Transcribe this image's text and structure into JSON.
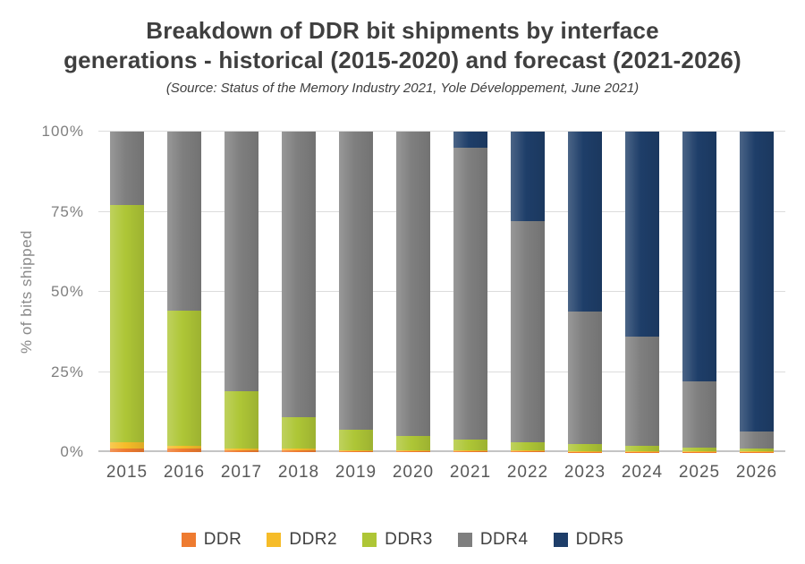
{
  "header": {
    "title_line1": "Breakdown of DDR bit shipments by interface",
    "title_line2": "generations - historical (2015-2020) and forecast (2021-2026)",
    "subtitle": "(Source: Status of the Memory Industry 2021, Yole Développement, June 2021)"
  },
  "chart_data": {
    "type": "bar",
    "stacked": true,
    "title": "Breakdown of DDR bit shipments by interface generations - historical (2015-2020) and forecast (2021-2026)",
    "xlabel": "",
    "ylabel": "% of bits shipped",
    "ylim": [
      0,
      100
    ],
    "yticks": [
      0,
      25,
      50,
      75,
      100
    ],
    "ytick_labels": [
      "0%",
      "25%",
      "50%",
      "75%",
      "100%"
    ],
    "grid": true,
    "legend_position": "bottom",
    "categories": [
      "2015",
      "2016",
      "2017",
      "2018",
      "2019",
      "2020",
      "2021",
      "2022",
      "2023",
      "2024",
      "2025",
      "2026"
    ],
    "series": [
      {
        "name": "DDR",
        "color": "#ee7b30",
        "values": [
          1,
          1,
          0.5,
          0.5,
          0.3,
          0.2,
          0.2,
          0.2,
          0.1,
          0.1,
          0.1,
          0.1
        ]
      },
      {
        "name": "DDR2",
        "color": "#f6bc29",
        "values": [
          2,
          1,
          0.5,
          0.5,
          0.2,
          0.3,
          0.3,
          0.3,
          0.2,
          0.1,
          0.1,
          0.1
        ]
      },
      {
        "name": "DDR3",
        "color": "#aec636",
        "values": [
          74,
          42,
          18,
          10,
          6.5,
          4.5,
          3.5,
          2.5,
          2.2,
          1.8,
          1.3,
          0.8
        ]
      },
      {
        "name": "DDR4",
        "color": "#7f7f7f",
        "values": [
          23,
          56,
          81,
          89,
          93,
          95,
          91,
          69,
          41.5,
          34,
          20.5,
          5.5
        ]
      },
      {
        "name": "DDR5",
        "color": "#1e3e69",
        "values": [
          0,
          0,
          0,
          0,
          0,
          0,
          5,
          28,
          56,
          64,
          78,
          93.5
        ]
      }
    ]
  }
}
